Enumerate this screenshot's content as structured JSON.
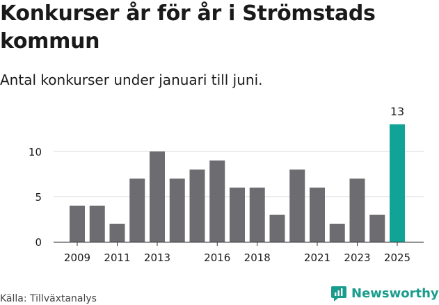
{
  "title": "Konkurser år för år i Strömstads kommun",
  "subtitle": "Antal konkurser under januari till juni.",
  "source": "Källa: Tillväxtanalys",
  "brand": "Newsworthy",
  "icons": {
    "brand_logo": "newsworthy-logo-icon"
  },
  "colors": {
    "bar": "#6d6c70",
    "highlight": "#12a397",
    "grid": "#d9d9d9",
    "brand": "#1a9c8d"
  },
  "chart_data": {
    "type": "bar",
    "x": [
      2009,
      2010,
      2011,
      2012,
      2013,
      2014,
      2015,
      2016,
      2017,
      2018,
      2019,
      2020,
      2021,
      2022,
      2023,
      2024,
      2025
    ],
    "values": [
      4,
      4,
      2,
      7,
      10,
      7,
      8,
      9,
      6,
      6,
      3,
      8,
      6,
      2,
      7,
      3,
      13
    ],
    "highlight_index": 16,
    "highlight_label": "13",
    "y_ticks": [
      0,
      5,
      10
    ],
    "x_tick_labels": [
      "2009",
      "2011",
      "2013",
      "2016",
      "2018",
      "2021",
      "2023",
      "2025"
    ],
    "ylim": [
      0,
      13.5
    ],
    "grid": true
  }
}
